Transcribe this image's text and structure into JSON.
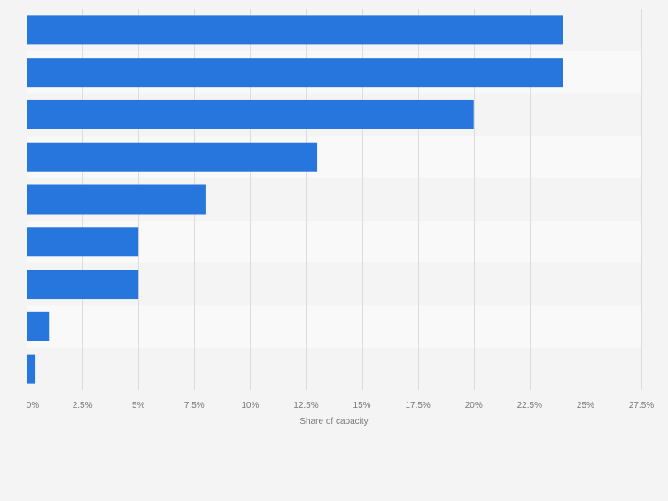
{
  "chart_data": {
    "type": "bar",
    "orientation": "horizontal",
    "categories": [
      "",
      "",
      "",
      "",
      "",
      "",
      "",
      "",
      ""
    ],
    "values": [
      24,
      24,
      20,
      13,
      8,
      5,
      5,
      1,
      0.4
    ],
    "xlabel": "Share of capacity",
    "ylabel": "",
    "xlim": [
      0,
      27.5
    ],
    "xticks": [
      0,
      2.5,
      5,
      7.5,
      10,
      12.5,
      15,
      17.5,
      20,
      22.5,
      25,
      27.5
    ],
    "xtick_labels": [
      "0%",
      "2.5%",
      "5%",
      "7.5%",
      "10%",
      "12.5%",
      "15%",
      "17.5%",
      "20%",
      "22.5%",
      "25%",
      "27.5%"
    ],
    "grid": true,
    "legend": "none",
    "colors": {
      "bar": "#2776dd",
      "band_even": "#f4f4f4",
      "band_odd": "#f9f9f9",
      "grid": "#dcdcdc",
      "axis": "#333333",
      "tick_text": "#777777",
      "background": "#f4f4f4"
    }
  }
}
